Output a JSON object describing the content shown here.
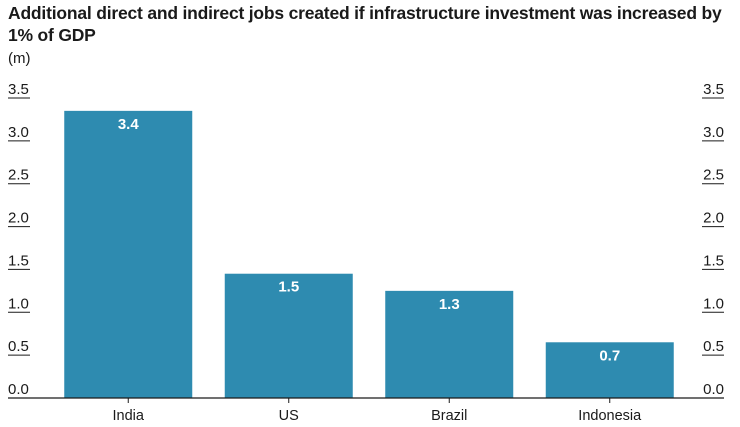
{
  "chart_data": {
    "type": "bar",
    "title": "Additional direct and indirect jobs created if infrastructure investment was increased by 1% of GDP",
    "ylabel": "(m)",
    "xlabel": "",
    "categories": [
      "India",
      "US",
      "Brazil",
      "Indonesia"
    ],
    "values": [
      3.35,
      1.45,
      1.25,
      0.65
    ],
    "data_labels": [
      "3.4",
      "1.5",
      "1.3",
      "0.7"
    ],
    "ylim": [
      0,
      3.5
    ],
    "yticks": [
      "0.0",
      "0.5",
      "1.0",
      "1.5",
      "2.0",
      "2.5",
      "3.0",
      "3.5"
    ],
    "ytick_values": [
      0,
      0.5,
      1.0,
      1.5,
      2.0,
      2.5,
      3.0,
      3.5
    ],
    "grid": false,
    "axis_sides": "both",
    "bar_color": "#2e8bb0",
    "label_color": "#ffffff"
  }
}
